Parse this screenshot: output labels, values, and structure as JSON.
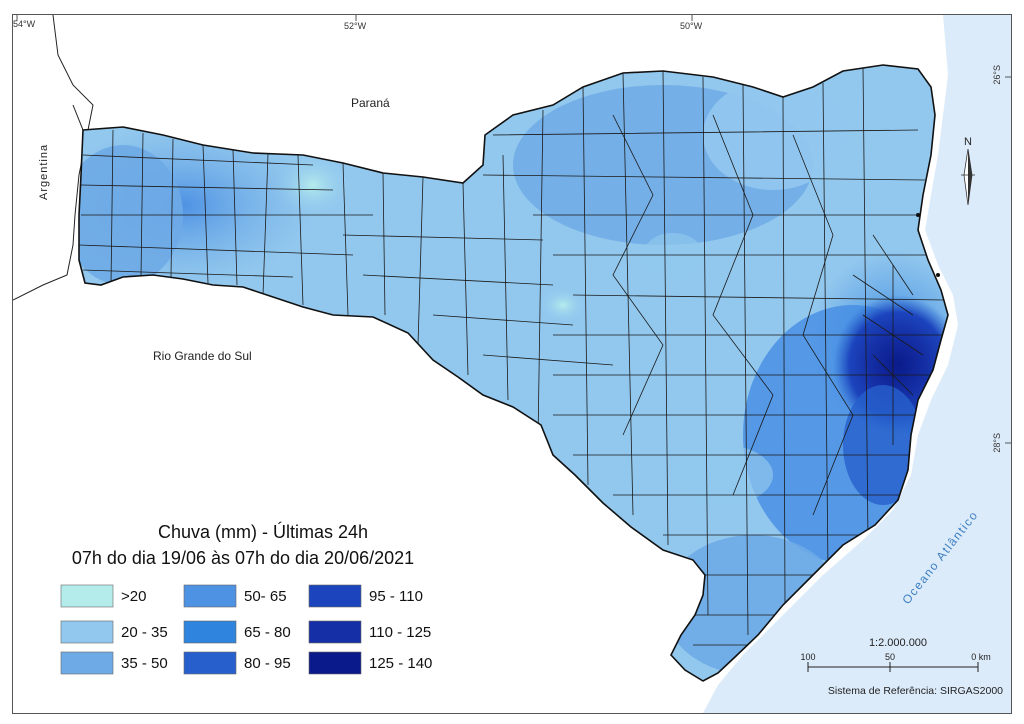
{
  "map": {
    "graticule": {
      "lon_54": "54°W",
      "lon_52": "52°W",
      "lon_50": "50°W",
      "lat_26": "26°S",
      "lat_28": "28°S"
    },
    "places": {
      "parana": "Paraná",
      "argentina": "Argentina",
      "rio_grande_do_sul": "Rio Grande do Sul",
      "oceano": "Oceano Atlântico"
    },
    "north_arrow": "N",
    "scale": {
      "ratio": "1:2.000.000",
      "tick_100": "100",
      "tick_50": "50",
      "tick_0": "0 km"
    },
    "reference": "Sistema de Referência: SIRGAS2000"
  },
  "legend": {
    "title_line1": "Chuva (mm) - Últimas 24h",
    "title_line2": "07h do dia 19/06 às 07h do dia 20/06/2021",
    "classes": [
      {
        "label": ">20",
        "color": "#b4ecec"
      },
      {
        "label": "20 - 35",
        "color": "#92c8ee"
      },
      {
        "label": "35 - 50",
        "color": "#6eaae6"
      },
      {
        "label": "50- 65",
        "color": "#4e92e4"
      },
      {
        "label": "65 - 80",
        "color": "#2f85de"
      },
      {
        "label": "80 - 95",
        "color": "#2760cc"
      },
      {
        "label": "95 - 110",
        "color": "#1c44bd"
      },
      {
        "label": "110 - 125",
        "color": "#1530a6"
      },
      {
        "label": "125 - 140",
        "color": "#0a1a8a"
      }
    ]
  },
  "colors": {
    "ocean": "#dcebfa",
    "state_border": "#111111",
    "municipal_border": "#1a1a1a"
  }
}
